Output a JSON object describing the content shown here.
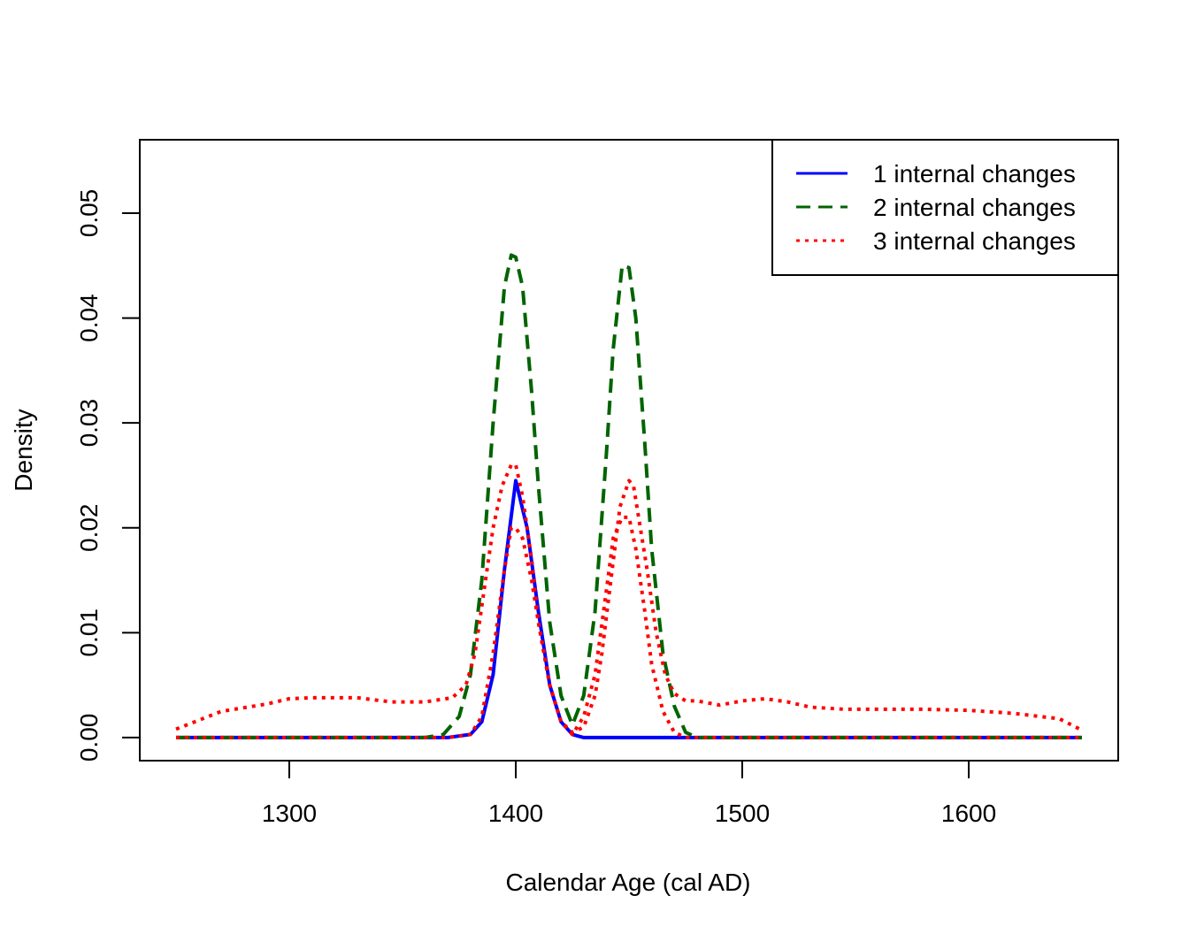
{
  "chart_data": {
    "type": "line",
    "title": "",
    "xlabel": "Calendar Age (cal AD)",
    "ylabel": "Density",
    "xlim": [
      1234,
      1666
    ],
    "ylim": [
      -0.0022,
      0.057
    ],
    "x_ticks": [
      1300,
      1400,
      1500,
      1600
    ],
    "x_tick_labels": [
      "1300",
      "1400",
      "1500",
      "1600"
    ],
    "y_ticks": [
      0,
      0.01,
      0.02,
      0.03,
      0.04,
      0.05
    ],
    "y_tick_labels": [
      "0.00",
      "0.01",
      "0.02",
      "0.03",
      "0.04",
      "0.05"
    ],
    "grid": false,
    "legend_position": "top-right",
    "series": [
      {
        "name": "1 internal changes",
        "color": "#0000ff",
        "dash": "solid",
        "x": [
          1250,
          1350,
          1370,
          1380,
          1385,
          1390,
          1395,
          1400,
          1405,
          1410,
          1415,
          1420,
          1425,
          1430,
          1450,
          1550,
          1650
        ],
        "y": [
          0,
          0,
          0,
          0.0003,
          0.0015,
          0.006,
          0.016,
          0.0245,
          0.02,
          0.012,
          0.005,
          0.0015,
          0.0003,
          0,
          0,
          0,
          0
        ]
      },
      {
        "name": "2 internal changes",
        "color": "#006400",
        "dash": "dashed",
        "x": [
          1250,
          1360,
          1368,
          1375,
          1380,
          1385,
          1390,
          1395,
          1398,
          1400,
          1403,
          1407,
          1410,
          1415,
          1420,
          1425,
          1430,
          1435,
          1440,
          1443,
          1447,
          1450,
          1453,
          1457,
          1460,
          1465,
          1470,
          1475,
          1480,
          1550,
          1650
        ],
        "y": [
          0,
          0,
          0.0003,
          0.002,
          0.006,
          0.015,
          0.03,
          0.043,
          0.046,
          0.0458,
          0.043,
          0.033,
          0.024,
          0.011,
          0.004,
          0.0012,
          0.004,
          0.012,
          0.027,
          0.037,
          0.045,
          0.0448,
          0.04,
          0.028,
          0.018,
          0.008,
          0.003,
          0.0005,
          0,
          0,
          0
        ]
      },
      {
        "name": "3 internal changes",
        "color": "#ff0000",
        "dash": "dotted",
        "x": [
          1250,
          1270,
          1290,
          1300,
          1310,
          1330,
          1345,
          1360,
          1372,
          1378,
          1382,
          1386,
          1390,
          1394,
          1398,
          1400,
          1403,
          1407,
          1410,
          1415,
          1420,
          1425,
          1430,
          1435,
          1438,
          1442,
          1446,
          1450,
          1452,
          1455,
          1458,
          1462,
          1466,
          1470,
          1475,
          1480,
          1490,
          1500,
          1510,
          1520,
          1530,
          1545,
          1560,
          1580,
          1600,
          1620,
          1640,
          1650
        ],
        "y": [
          0.0008,
          0.0025,
          0.0032,
          0.0037,
          0.0038,
          0.0038,
          0.0034,
          0.0034,
          0.0038,
          0.005,
          0.008,
          0.014,
          0.02,
          0.024,
          0.026,
          0.026,
          0.023,
          0.017,
          0.011,
          0.005,
          0.0015,
          0.0005,
          0.001,
          0.004,
          0.008,
          0.015,
          0.022,
          0.0245,
          0.024,
          0.02,
          0.016,
          0.01,
          0.006,
          0.0042,
          0.0035,
          0.0035,
          0.0031,
          0.0035,
          0.0037,
          0.0034,
          0.0029,
          0.0027,
          0.0027,
          0.0027,
          0.0026,
          0.0023,
          0.0018,
          0.0007
        ]
      },
      {
        "name": "",
        "color": "#ff0000",
        "dash": "dotted",
        "x": [
          1250,
          1370,
          1380,
          1385,
          1390,
          1395,
          1398,
          1400,
          1403,
          1407,
          1410,
          1415,
          1420,
          1425,
          1430,
          1435,
          1440,
          1443,
          1447,
          1450,
          1453,
          1457,
          1460,
          1465,
          1470,
          1475,
          1480,
          1550,
          1650
        ],
        "y": [
          0,
          0,
          0.0003,
          0.002,
          0.008,
          0.016,
          0.02,
          0.02,
          0.019,
          0.015,
          0.011,
          0.005,
          0.0015,
          0.0003,
          0.002,
          0.006,
          0.014,
          0.019,
          0.021,
          0.021,
          0.018,
          0.012,
          0.007,
          0.0025,
          0.0005,
          0,
          0,
          0,
          0
        ]
      }
    ]
  }
}
